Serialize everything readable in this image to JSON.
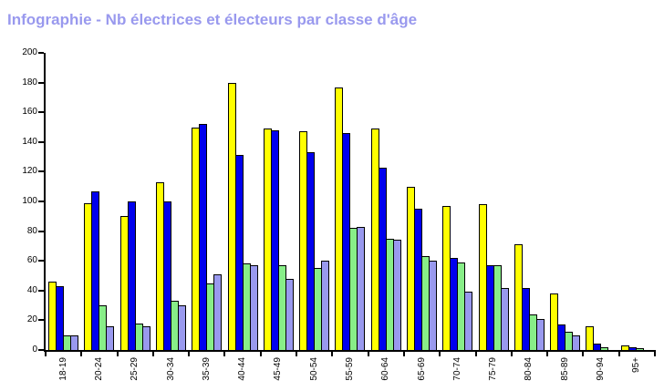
{
  "title": "Infographie - Nb électrices et électeurs par classe d'âge",
  "colors": {
    "title_text": "#9999ee",
    "axis": "#000000",
    "background": "#ffffff",
    "bar_border": "#000000",
    "series_yellow": "#ffff00",
    "series_blue": "#0000ee",
    "series_green": "#88ee88",
    "series_lavender": "#9999ee"
  },
  "chart_data": {
    "type": "bar",
    "title": "Infographie - Nb électrices et électeurs par classe d'âge",
    "xlabel": "",
    "ylabel": "",
    "ylim": [
      0,
      200
    ],
    "y_ticks": [
      0,
      20,
      40,
      60,
      80,
      100,
      120,
      140,
      160,
      180,
      200
    ],
    "grid": false,
    "legend": "none",
    "categories": [
      "18-19",
      "20-24",
      "25-29",
      "30-34",
      "35-39",
      "40-44",
      "45-49",
      "50-54",
      "55-59",
      "60-64",
      "65-69",
      "70-74",
      "75-79",
      "80-84",
      "85-89",
      "90-94",
      "95+"
    ],
    "series": [
      {
        "name": "yellow",
        "color": "#ffff00",
        "values": [
          46,
          99,
          90,
          113,
          150,
          180,
          149,
          147,
          177,
          149,
          110,
          97,
          98,
          71,
          38,
          16,
          3
        ]
      },
      {
        "name": "blue",
        "color": "#0000ee",
        "values": [
          43,
          107,
          100,
          100,
          152,
          131,
          148,
          133,
          146,
          123,
          95,
          62,
          57,
          42,
          17,
          4,
          2
        ]
      },
      {
        "name": "green",
        "color": "#88ee88",
        "values": [
          10,
          30,
          18,
          33,
          45,
          58,
          57,
          55,
          82,
          75,
          63,
          59,
          57,
          24,
          12,
          2,
          1
        ]
      },
      {
        "name": "lavender",
        "color": "#9999ee",
        "values": [
          10,
          16,
          16,
          30,
          51,
          57,
          48,
          60,
          83,
          74,
          60,
          39,
          42,
          21,
          10,
          0,
          0
        ]
      }
    ]
  }
}
